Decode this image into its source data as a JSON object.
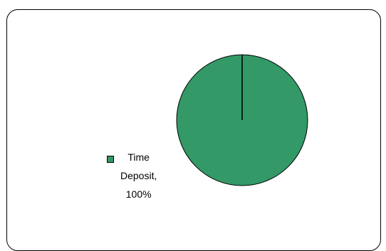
{
  "chart_data": {
    "type": "pie",
    "title": "",
    "slices": [
      {
        "name": "Time Deposit",
        "value": 100,
        "percent_label": "100%",
        "color": "#339966"
      }
    ],
    "legend": {
      "placement": "left",
      "entries": [
        {
          "lines": [
            "Time",
            "Deposit,",
            "100%"
          ],
          "color": "#339966"
        }
      ]
    },
    "start_angle_deg": 0,
    "border_color": "#000000"
  }
}
